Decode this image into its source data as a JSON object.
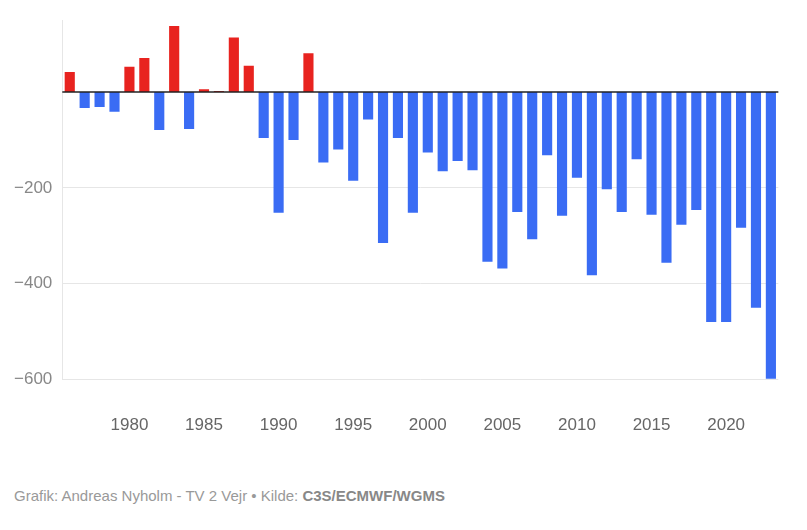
{
  "chart_data": {
    "type": "bar",
    "caption": "Grafik: Andreas Nyholm - TV 2 Vejr • Kilde:",
    "source": "C3S/ECMWF/WGMS",
    "categories": [
      null,
      null,
      null,
      null,
      "1980",
      null,
      null,
      null,
      null,
      "1985",
      null,
      null,
      null,
      null,
      "1990",
      null,
      null,
      null,
      null,
      "1995",
      null,
      null,
      null,
      null,
      "2000",
      null,
      null,
      null,
      null,
      "2005",
      null,
      null,
      null,
      null,
      "2010",
      null,
      null,
      null,
      null,
      "2015",
      null,
      null,
      null,
      null,
      "2020",
      null,
      null,
      null
    ],
    "values": [
      42,
      -33,
      -31,
      -41,
      53,
      71,
      -79,
      138,
      -77,
      6,
      2,
      114,
      55,
      -96,
      -252,
      -100,
      81,
      -147,
      -120,
      -185,
      -57,
      -315,
      -96,
      -252,
      -126,
      -165,
      -144,
      -163,
      -354,
      -368,
      -250,
      -307,
      -132,
      -258,
      -179,
      -382,
      -203,
      -250,
      -140,
      -256,
      -356,
      -277,
      -246,
      -480,
      -480,
      -283,
      -450,
      -598
    ],
    "colors": [
      "#e8231f",
      "#3a6cf4",
      "#3a6cf4",
      "#3a6cf4",
      "#e8231f",
      "#e8231f",
      "#3a6cf4",
      "#e8231f",
      "#3a6cf4",
      "#e8231f",
      "#e8231f",
      "#e8231f",
      "#e8231f",
      "#3a6cf4",
      "#3a6cf4",
      "#3a6cf4",
      "#e8231f",
      "#3a6cf4",
      "#3a6cf4",
      "#3a6cf4",
      "#3a6cf4",
      "#3a6cf4",
      "#3a6cf4",
      "#3a6cf4",
      "#3a6cf4",
      "#3a6cf4",
      "#3a6cf4",
      "#3a6cf4",
      "#3a6cf4",
      "#3a6cf4",
      "#3a6cf4",
      "#3a6cf4",
      "#3a6cf4",
      "#3a6cf4",
      "#3a6cf4",
      "#3a6cf4",
      "#3a6cf4",
      "#3a6cf4",
      "#3a6cf4",
      "#3a6cf4",
      "#3a6cf4",
      "#3a6cf4",
      "#3a6cf4",
      "#3a6cf4",
      "#3a6cf4",
      "#3a6cf4",
      "#3a6cf4",
      "#3a6cf4"
    ],
    "ylim": [
      -600,
      150
    ],
    "yticks": [
      -600,
      -400,
      -200
    ],
    "grid": true
  }
}
